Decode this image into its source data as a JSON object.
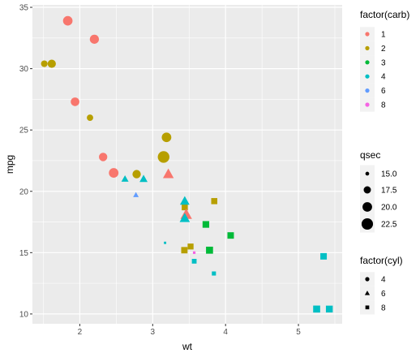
{
  "chart_data": {
    "type": "scatter",
    "xlabel": "wt",
    "ylabel": "mpg",
    "xlim": [
      1.35,
      5.6
    ],
    "ylim": [
      9.2,
      35.2
    ],
    "x_ticks": [
      2,
      3,
      4,
      5
    ],
    "y_ticks": [
      10,
      15,
      20,
      25,
      30,
      35
    ],
    "grid": true,
    "panel_background": "#ebebeb",
    "legends": {
      "carb": {
        "title": "factor(carb)",
        "entries": [
          {
            "label": "1",
            "color": "#F8766D"
          },
          {
            "label": "2",
            "color": "#B79F00"
          },
          {
            "label": "3",
            "color": "#00BA38"
          },
          {
            "label": "4",
            "color": "#00BFC4"
          },
          {
            "label": "6",
            "color": "#619CFF"
          },
          {
            "label": "8",
            "color": "#F564E3"
          }
        ]
      },
      "qsec": {
        "title": "qsec",
        "entries": [
          {
            "label": "15.0",
            "value": 15.0
          },
          {
            "label": "17.5",
            "value": 17.5
          },
          {
            "label": "20.0",
            "value": 20.0
          },
          {
            "label": "22.5",
            "value": 22.5
          }
        ]
      },
      "cyl": {
        "title": "factor(cyl)",
        "entries": [
          {
            "label": "4",
            "shape": "circle"
          },
          {
            "label": "6",
            "shape": "triangle"
          },
          {
            "label": "8",
            "shape": "square"
          }
        ]
      }
    },
    "points": [
      {
        "wt": 2.62,
        "mpg": 21.0,
        "qsec": 16.46,
        "cyl": "6",
        "carb": "4"
      },
      {
        "wt": 2.875,
        "mpg": 21.0,
        "qsec": 17.02,
        "cyl": "6",
        "carb": "4"
      },
      {
        "wt": 2.32,
        "mpg": 22.8,
        "qsec": 18.61,
        "cyl": "4",
        "carb": "1"
      },
      {
        "wt": 3.215,
        "mpg": 21.4,
        "qsec": 19.44,
        "cyl": "6",
        "carb": "1"
      },
      {
        "wt": 3.44,
        "mpg": 18.7,
        "qsec": 17.02,
        "cyl": "8",
        "carb": "2"
      },
      {
        "wt": 3.46,
        "mpg": 18.1,
        "qsec": 20.22,
        "cyl": "6",
        "carb": "1"
      },
      {
        "wt": 3.57,
        "mpg": 14.3,
        "qsec": 15.84,
        "cyl": "8",
        "carb": "4"
      },
      {
        "wt": 3.19,
        "mpg": 24.4,
        "qsec": 20.0,
        "cyl": "4",
        "carb": "2"
      },
      {
        "wt": 3.15,
        "mpg": 22.8,
        "qsec": 22.9,
        "cyl": "4",
        "carb": "2"
      },
      {
        "wt": 3.44,
        "mpg": 19.2,
        "qsec": 18.3,
        "cyl": "6",
        "carb": "4"
      },
      {
        "wt": 3.44,
        "mpg": 17.8,
        "qsec": 18.9,
        "cyl": "6",
        "carb": "4"
      },
      {
        "wt": 4.07,
        "mpg": 16.4,
        "qsec": 17.4,
        "cyl": "8",
        "carb": "3"
      },
      {
        "wt": 3.73,
        "mpg": 17.3,
        "qsec": 17.6,
        "cyl": "8",
        "carb": "3"
      },
      {
        "wt": 3.78,
        "mpg": 15.2,
        "qsec": 18.0,
        "cyl": "8",
        "carb": "3"
      },
      {
        "wt": 5.25,
        "mpg": 10.4,
        "qsec": 17.98,
        "cyl": "8",
        "carb": "4"
      },
      {
        "wt": 5.424,
        "mpg": 10.4,
        "qsec": 17.82,
        "cyl": "8",
        "carb": "4"
      },
      {
        "wt": 5.345,
        "mpg": 14.7,
        "qsec": 17.42,
        "cyl": "8",
        "carb": "4"
      },
      {
        "wt": 2.2,
        "mpg": 32.4,
        "qsec": 19.47,
        "cyl": "4",
        "carb": "1"
      },
      {
        "wt": 1.615,
        "mpg": 30.4,
        "qsec": 18.52,
        "cyl": "4",
        "carb": "2"
      },
      {
        "wt": 1.835,
        "mpg": 33.9,
        "qsec": 19.9,
        "cyl": "4",
        "carb": "1"
      },
      {
        "wt": 2.465,
        "mpg": 21.5,
        "qsec": 20.01,
        "cyl": "4",
        "carb": "1"
      },
      {
        "wt": 3.52,
        "mpg": 15.5,
        "qsec": 16.87,
        "cyl": "8",
        "carb": "2"
      },
      {
        "wt": 3.435,
        "mpg": 15.2,
        "qsec": 17.3,
        "cyl": "8",
        "carb": "2"
      },
      {
        "wt": 3.84,
        "mpg": 13.3,
        "qsec": 15.41,
        "cyl": "8",
        "carb": "4"
      },
      {
        "wt": 3.845,
        "mpg": 19.2,
        "qsec": 17.05,
        "cyl": "8",
        "carb": "2"
      },
      {
        "wt": 1.935,
        "mpg": 27.3,
        "qsec": 18.9,
        "cyl": "4",
        "carb": "1"
      },
      {
        "wt": 2.14,
        "mpg": 26.0,
        "qsec": 16.7,
        "cyl": "4",
        "carb": "2"
      },
      {
        "wt": 1.513,
        "mpg": 30.4,
        "qsec": 16.9,
        "cyl": "4",
        "carb": "2"
      },
      {
        "wt": 3.17,
        "mpg": 15.8,
        "qsec": 14.5,
        "cyl": "8",
        "carb": "4"
      },
      {
        "wt": 2.77,
        "mpg": 19.7,
        "qsec": 15.5,
        "cyl": "6",
        "carb": "6"
      },
      {
        "wt": 3.57,
        "mpg": 15.0,
        "qsec": 14.6,
        "cyl": "8",
        "carb": "8"
      },
      {
        "wt": 2.78,
        "mpg": 21.4,
        "qsec": 18.6,
        "cyl": "4",
        "carb": "2"
      }
    ]
  }
}
